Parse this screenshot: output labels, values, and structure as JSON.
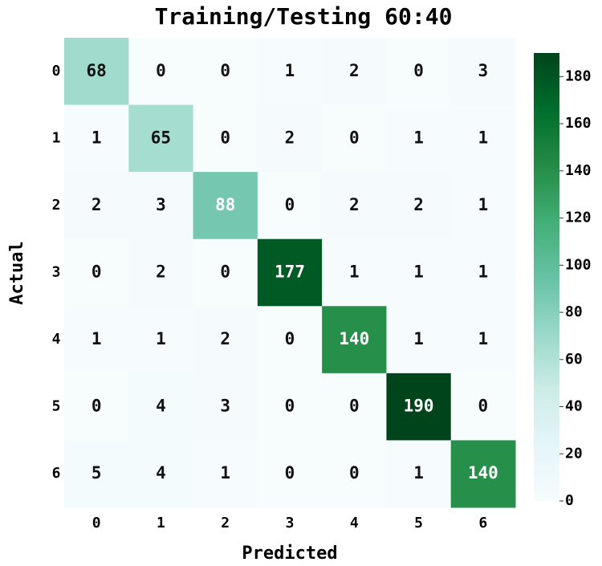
{
  "chart_data": {
    "type": "heatmap",
    "title": "Training/Testing 60:40",
    "xlabel": "Predicted",
    "ylabel": "Actual",
    "x": [
      "0",
      "1",
      "2",
      "3",
      "4",
      "5",
      "6"
    ],
    "y": [
      "0",
      "1",
      "2",
      "3",
      "4",
      "5",
      "6"
    ],
    "values": [
      [
        68,
        0,
        0,
        1,
        2,
        0,
        3
      ],
      [
        1,
        65,
        0,
        2,
        0,
        1,
        1
      ],
      [
        2,
        3,
        88,
        0,
        2,
        2,
        1
      ],
      [
        0,
        2,
        0,
        177,
        1,
        1,
        1
      ],
      [
        1,
        1,
        2,
        0,
        140,
        1,
        1
      ],
      [
        0,
        4,
        3,
        0,
        0,
        190,
        0
      ],
      [
        5,
        4,
        1,
        0,
        0,
        1,
        140
      ]
    ],
    "clim": [
      0,
      190
    ],
    "cticks": [
      0,
      20,
      40,
      60,
      80,
      100,
      120,
      140,
      160,
      180
    ],
    "colormap": [
      "#f7fcfd",
      "#e5f5f9",
      "#ccece6",
      "#99d8c9",
      "#66c2a4",
      "#41ae76",
      "#238b45",
      "#006d2c",
      "#00441b"
    ]
  }
}
